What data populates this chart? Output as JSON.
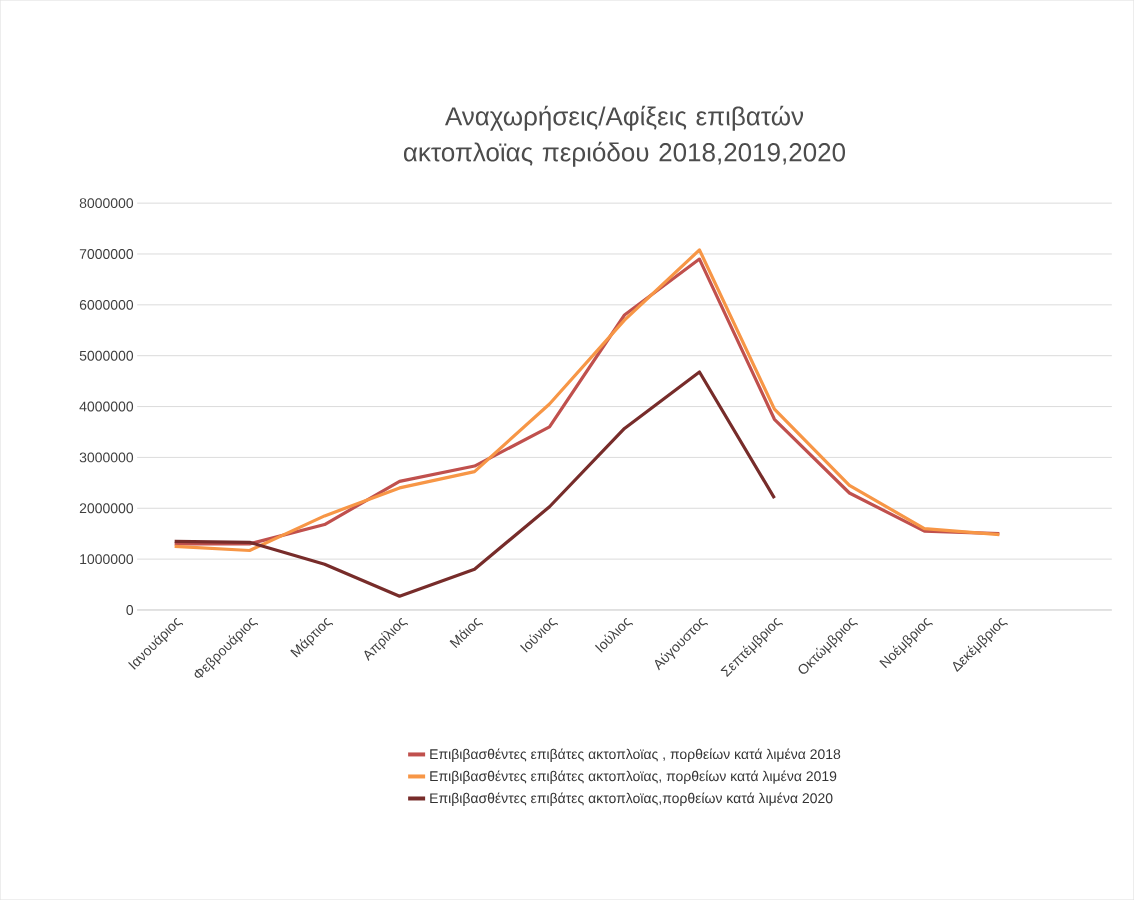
{
  "chart_data": {
    "type": "line",
    "title": "Αναχωρήσεις/Αφίξεις επιβατών ακτοπλοϊας περιόδου 2018,2019,2020",
    "categories": [
      "Ιανουάριος",
      "Φεβρουάριος",
      "Μάρτιος",
      "Απρίλιος",
      "Μάιος",
      "Ιούνιος",
      "Ιούλιος",
      "Αύγουστος",
      "Σεπτέμβριος",
      "Οκτώμβριος",
      "Νοέμβριος",
      "Δεκέμβριος"
    ],
    "series": [
      {
        "name": "Επιβιβασθέντες επιβάτες ακτοπλοϊας , πορθείων κατά λιμένα 2018",
        "color": "#c0504d",
        "values": [
          1300000,
          1300000,
          1680000,
          2530000,
          2830000,
          3600000,
          5800000,
          6900000,
          3750000,
          2300000,
          1550000,
          1500000
        ]
      },
      {
        "name": "Επιβιβασθέντες επιβάτες ακτοπλοϊας, πορθείων κατά λιμένα 2019",
        "color": "#f79646",
        "values": [
          1250000,
          1170000,
          1850000,
          2400000,
          2720000,
          4050000,
          5700000,
          7080000,
          3950000,
          2450000,
          1600000,
          1480000
        ]
      },
      {
        "name": "Επιβιβασθέντες επιβάτες ακτοπλοϊας,πορθείων κατά λιμένα 2020",
        "color": "#772c2a",
        "values": [
          1350000,
          1330000,
          900000,
          270000,
          800000,
          2030000,
          3570000,
          4680000,
          2200000,
          null,
          null,
          null
        ]
      }
    ],
    "ylim": [
      0,
      8000000
    ],
    "yticks": [
      0,
      1000000,
      2000000,
      3000000,
      4000000,
      5000000,
      6000000,
      7000000,
      8000000
    ],
    "grid": "y",
    "legend": "bottom",
    "marker": "none",
    "line_style": "solid"
  }
}
